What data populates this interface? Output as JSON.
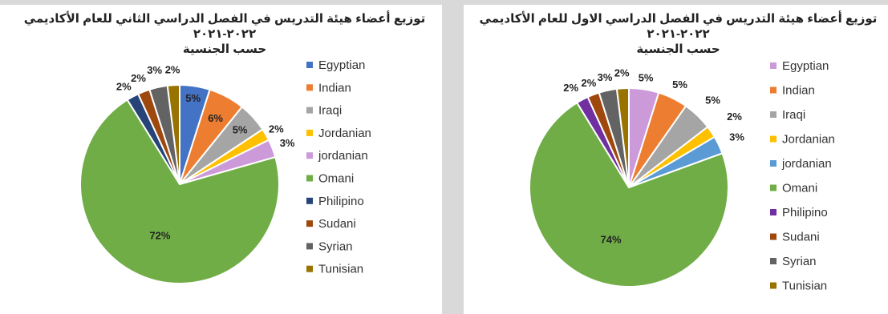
{
  "charts": [
    {
      "title": "توزيع أعضاء هيئة التدريس في الفصل الدراسي الثاني للعام الأكاديمي ٢٠٢٢-٢٠٢١",
      "subtitle": "حسب الجنسية"
    },
    {
      "title": "توزيع أعضاء هيئة التدريس في الفصل الدراسي الاول للعام الأكاديمي ٢٠٢٢-٢٠٢١",
      "subtitle": "حسب الجنسية"
    }
  ],
  "chart_data": [
    {
      "type": "pie",
      "title": "توزيع أعضاء هيئة التدريس في الفصل الدراسي الثاني للعام الأكاديمي ٢٠٢٢-٢٠٢١",
      "subtitle": "حسب الجنسية",
      "legend_position": "right",
      "categories": [
        "Egyptian",
        "Indian",
        "Iraqi",
        "Jordanian",
        "jordanian",
        "Omani",
        "Philipino",
        "Sudani",
        "Syrian",
        "Tunisian"
      ],
      "values": [
        5,
        6,
        5,
        2,
        3,
        72,
        2,
        2,
        3,
        2
      ],
      "labels": [
        "5%",
        "6%",
        "5%",
        "2%",
        "3%",
        "72%",
        "2%",
        "2%",
        "3%",
        "2%"
      ],
      "colors": [
        "#4472c4",
        "#ed7d31",
        "#a5a5a5",
        "#ffc000",
        "#cc99d9",
        "#70ad47",
        "#264478",
        "#9e480e",
        "#636363",
        "#997300"
      ]
    },
    {
      "type": "pie",
      "title": "توزيع أعضاء هيئة التدريس في الفصل الدراسي الاول للعام الأكاديمي ٢٠٢٢-٢٠٢١",
      "subtitle": "حسب الجنسية",
      "legend_position": "right",
      "categories": [
        "Egyptian",
        "Indian",
        "Iraqi",
        "Jordanian",
        "jordanian",
        "Omani",
        "Philipino",
        "Sudani",
        "Syrian",
        "Tunisian"
      ],
      "values": [
        5,
        5,
        5,
        2,
        3,
        74,
        2,
        2,
        3,
        2
      ],
      "labels": [
        "5%",
        "5%",
        "5%",
        "2%",
        "3%",
        "74%",
        "2%",
        "2%",
        "3%",
        "2%"
      ],
      "colors": [
        "#cc99d9",
        "#ed7d31",
        "#a5a5a5",
        "#ffc000",
        "#5b9bd5",
        "#70ad47",
        "#7030a0",
        "#9e480e",
        "#636363",
        "#997300"
      ]
    }
  ]
}
